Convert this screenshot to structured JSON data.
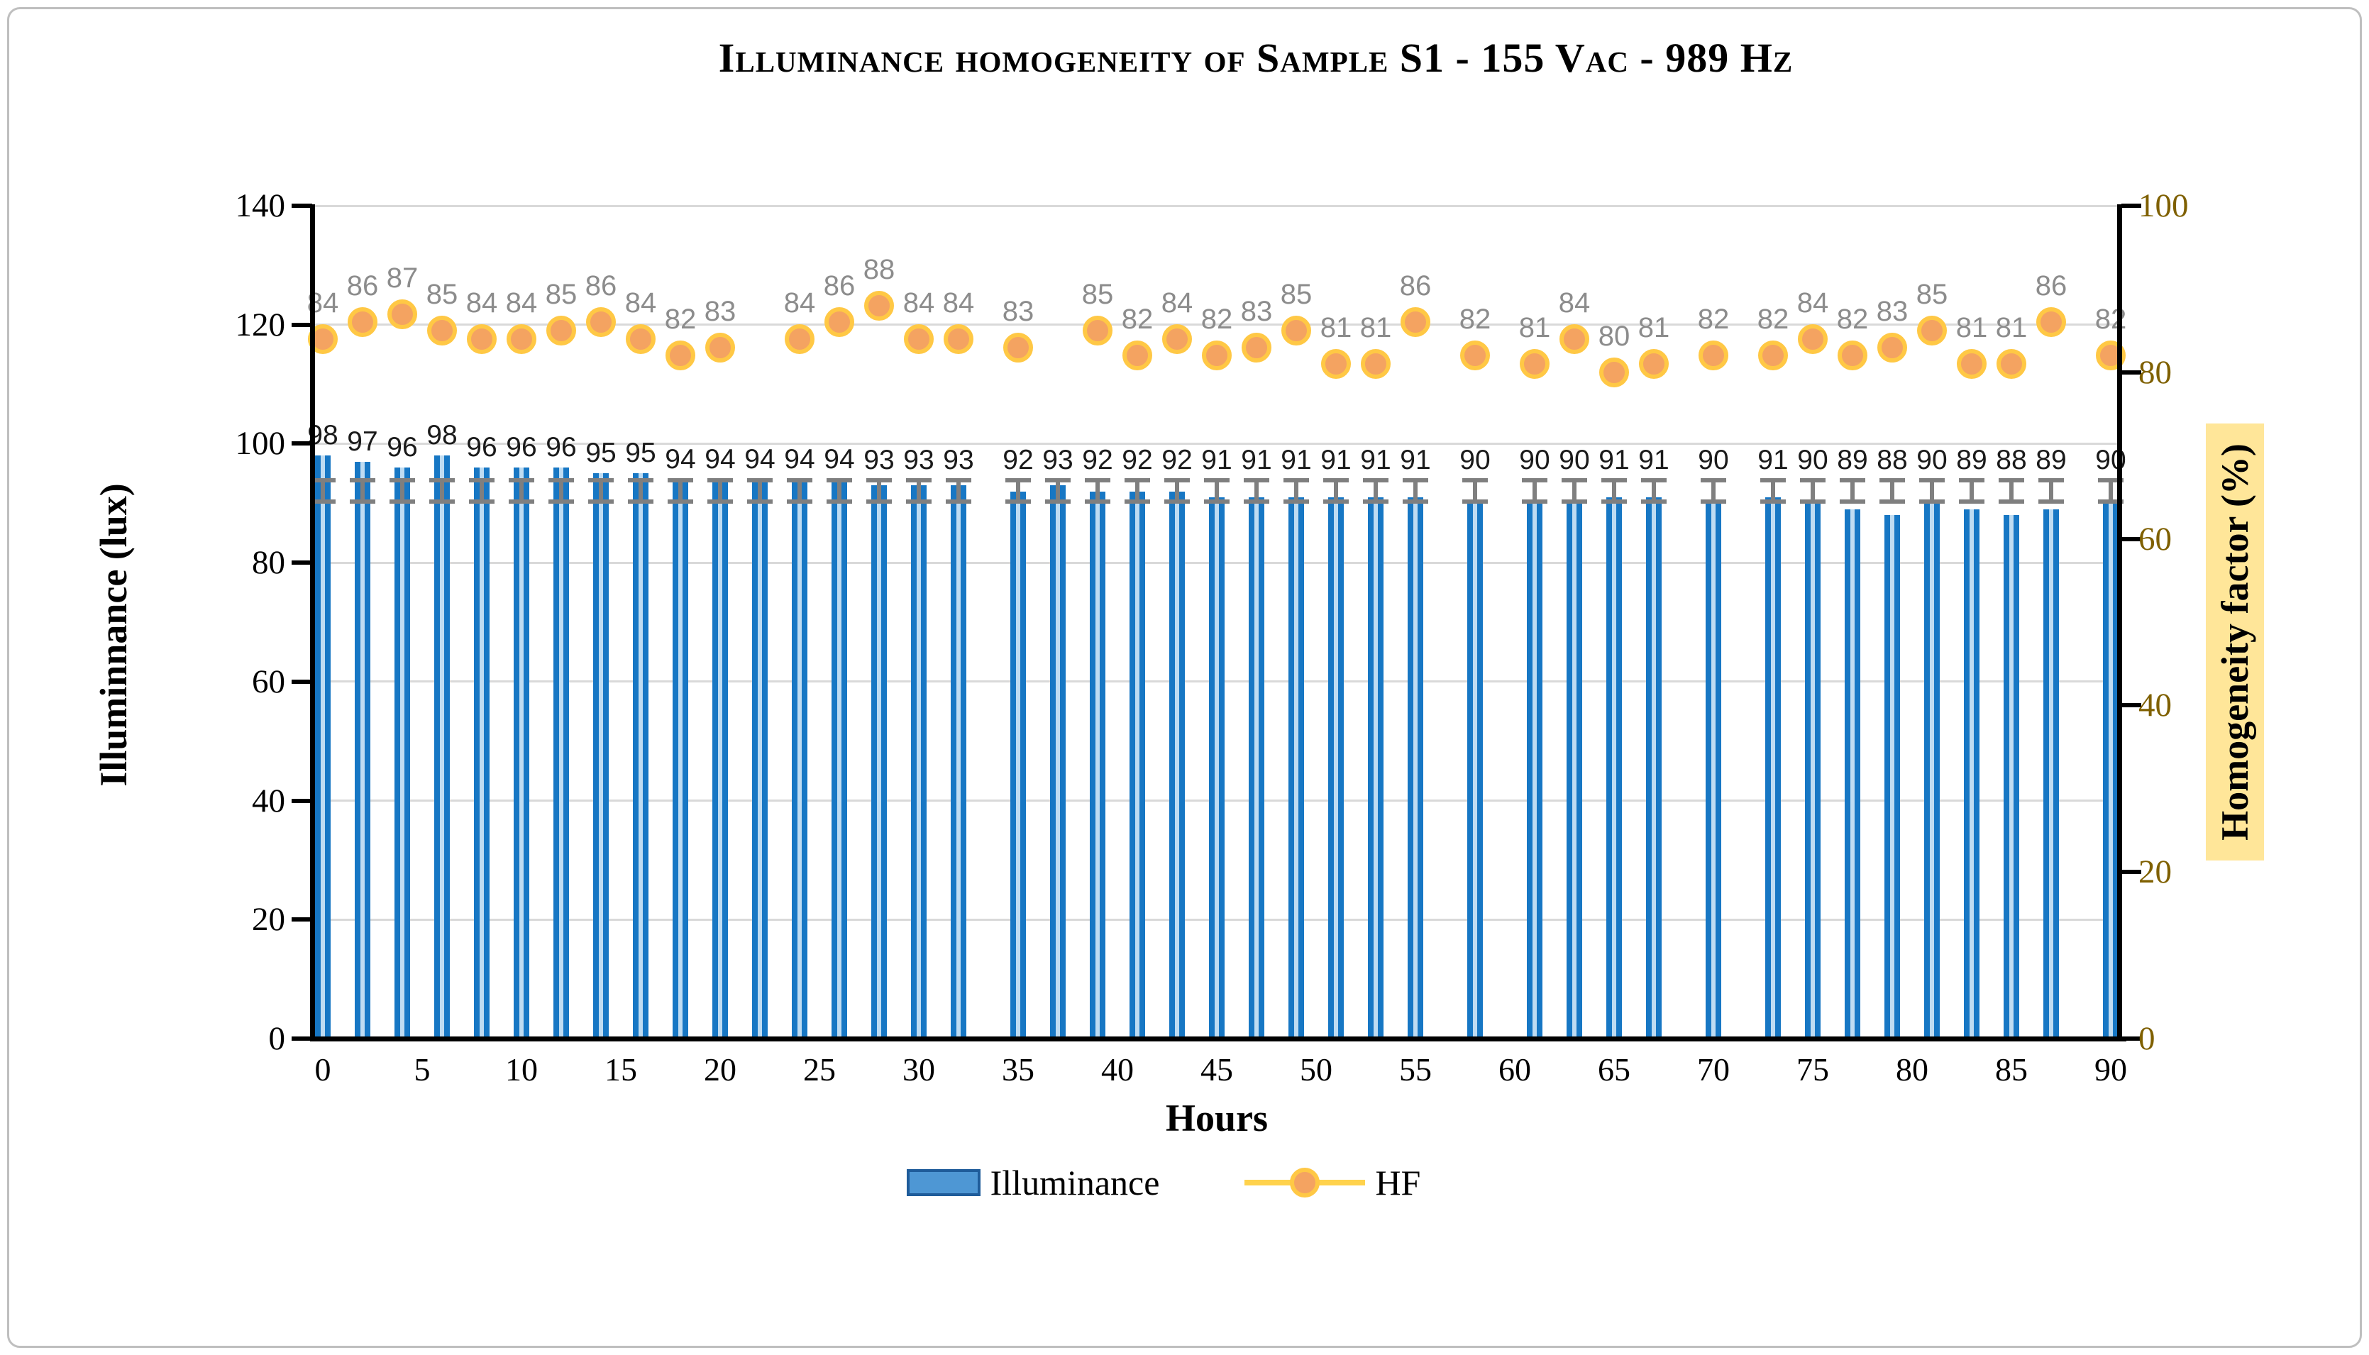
{
  "title": "Illuminance homogeneity of Sample S1 - 155 Vac - 989 Hz",
  "axes": {
    "left": {
      "label": "Illuminnance (lux)",
      "ticks": [
        140,
        120,
        100,
        80,
        60,
        40,
        20,
        0
      ],
      "range": [
        0,
        140
      ]
    },
    "right": {
      "label": "Homogeneity factor (%)",
      "ticks": [
        100,
        80,
        60,
        40,
        20,
        0
      ],
      "range": [
        0,
        100
      ],
      "color": "#7f6000"
    },
    "x": {
      "label": "Hours",
      "ticks": [
        0,
        5,
        10,
        15,
        20,
        25,
        30,
        35,
        40,
        45,
        50,
        55,
        60,
        65,
        70,
        75,
        80,
        85,
        90
      ],
      "range": [
        0,
        90
      ]
    }
  },
  "legend": {
    "bar_label": "Illuminance",
    "line_label": "HF"
  },
  "colors": {
    "bar_fill": "#1777c4",
    "bar_stripe": "#bfdcf2",
    "error_bar": "#7f7f7f",
    "hf_dot_fill": "#f4a361",
    "hf_dot_ring": "#ffc845",
    "hf_line": "#ffd24c",
    "hf_label": "#8c8c8c",
    "gridline": "#d9d9d9",
    "right_axis_text": "#7f6000",
    "right_label_bg": "#ffe699",
    "frame_border": "#bfbfbf"
  },
  "chart_data": {
    "type": "bar",
    "title": "Illuminance homogeneity of Sample S1 - 155 Vac - 989 Hz",
    "xlabel": "Hours",
    "ylabel_left": "Illuminnance (lux)",
    "ylabel_right": "Homogeneity factor (%)",
    "xlim": [
      0,
      90
    ],
    "ylim_left": [
      0,
      140
    ],
    "ylim_right": [
      0,
      100
    ],
    "grid": "horizontal",
    "legend_position": "bottom",
    "series": [
      {
        "name": "Illuminance",
        "type": "bar",
        "axis": "left",
        "x": [
          0,
          2,
          4,
          6,
          8,
          10,
          12,
          14,
          16,
          18,
          20,
          22,
          24,
          26,
          28,
          30,
          32,
          35,
          37,
          39,
          41,
          43,
          45,
          47,
          49,
          51,
          53,
          55,
          58,
          61,
          63,
          65,
          67,
          70,
          73,
          75,
          77,
          79,
          81,
          83,
          85,
          87,
          90
        ],
        "y": [
          98,
          97,
          96,
          98,
          96,
          96,
          96,
          95,
          95,
          94,
          94,
          94,
          94,
          94,
          93,
          93,
          93,
          92,
          93,
          92,
          92,
          92,
          91,
          91,
          91,
          91,
          91,
          91,
          90,
          90,
          90,
          91,
          91,
          90,
          91,
          90,
          89,
          88,
          90,
          89,
          88,
          89,
          90
        ]
      },
      {
        "name": "HF",
        "type": "scatter",
        "axis": "right",
        "x": [
          0,
          2,
          4,
          6,
          8,
          10,
          12,
          14,
          16,
          18,
          20,
          24,
          26,
          28,
          30,
          32,
          35,
          39,
          41,
          43,
          45,
          47,
          49,
          51,
          53,
          55,
          58,
          61,
          63,
          65,
          67,
          70,
          73,
          75,
          77,
          79,
          81,
          83,
          85,
          87,
          90
        ],
        "y": [
          84,
          86,
          87,
          85,
          84,
          84,
          85,
          86,
          84,
          82,
          83,
          84,
          86,
          88,
          84,
          84,
          83,
          85,
          82,
          84,
          82,
          83,
          85,
          81,
          81,
          86,
          82,
          81,
          84,
          80,
          81,
          82,
          82,
          84,
          82,
          83,
          85,
          81,
          81,
          86,
          82
        ]
      }
    ],
    "error_bars": {
      "applies_to": "Illuminance",
      "constant_band_lux": [
        90.3,
        93.8
      ],
      "style": "capped-gray"
    }
  }
}
